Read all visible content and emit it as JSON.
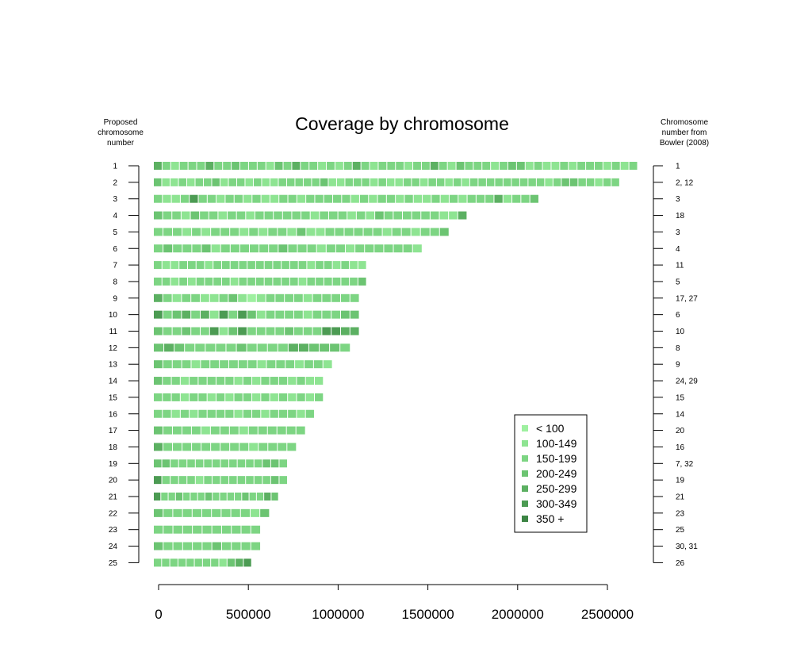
{
  "chart_data": {
    "type": "heatmap",
    "title": "Coverage by chromosome",
    "left_axis_label": [
      "Proposed",
      "chromosome",
      "number"
    ],
    "right_axis_label": [
      "Chromosome",
      "number from",
      "Bowler (2008)"
    ],
    "x_ticks": [
      0,
      500000,
      1000000,
      1500000,
      2000000,
      2500000
    ],
    "x_tick_labels": [
      "0",
      "500000",
      "1000000",
      "1500000",
      "2000000",
      "2500000"
    ],
    "xlim": [
      0,
      2700000
    ],
    "bin_size": 50000,
    "legend": {
      "position": "bottom-right",
      "entries": [
        {
          "label": "< 100",
          "color": "#9ef0a0"
        },
        {
          "label": "100-149",
          "color": "#8ee492"
        },
        {
          "label": "150-199",
          "color": "#7dd583"
        },
        {
          "label": "200-249",
          "color": "#6cc472"
        },
        {
          "label": "250-299",
          "color": "#5cb062"
        },
        {
          "label": "300-349",
          "color": "#4c9b53"
        },
        {
          "label": "350 +",
          "color": "#3d8545"
        }
      ]
    },
    "chromosomes": [
      {
        "label": "1",
        "bowler": "1",
        "length": 2670000,
        "levels": "42122242232221324221212421222122421322212331211212221212"
      },
      {
        "label": "2",
        "bowler": "2, 12",
        "length": 2570000,
        "levels": "31121223122121122222311222121122122121222222222123322122"
      },
      {
        "label": "3",
        "bowler": "3",
        "length": 2120000,
        "levels": "2112522122121122122222121221211212122241223"
      },
      {
        "label": "4",
        "bowler": "18",
        "length": 1720000,
        "levels": "3221322122122222212221213222222114"
      },
      {
        "label": "5",
        "bowler": "3",
        "length": 1620000,
        "levels": "2221212221212213112222221221223"
      },
      {
        "label": "6",
        "bowler": "4",
        "length": 1470000,
        "levels": "2322231222222322212212222221"
      },
      {
        "label": "7",
        "bowler": "11",
        "length": 1160000,
        "levels": "2112221222222222221221211"
      },
      {
        "label": "8",
        "bowler": "5",
        "length": 1160000,
        "levels": "2212122221222222212222223"
      },
      {
        "label": "9",
        "bowler": "17, 27",
        "length": 1120000,
        "levels": "4212211231012222122222"
      },
      {
        "label": "10",
        "bowler": "6",
        "length": 1120000,
        "levels": "5234241525312222122233"
      },
      {
        "label": "11",
        "bowler": "10",
        "length": 1120000,
        "levels": "3223225135222232225544"
      },
      {
        "label": "12",
        "bowler": "8",
        "length": 1070000,
        "levels": "3432222232222443332"
      },
      {
        "label": "13",
        "bowler": "9",
        "length": 970000,
        "levels": "3222122222212221221"
      },
      {
        "label": "14",
        "bowler": "24, 29",
        "length": 920000,
        "levels": "3221222221212221211"
      },
      {
        "label": "15",
        "bowler": "15",
        "length": 920000,
        "levels": "2221221212212121212"
      },
      {
        "label": "16",
        "bowler": "14",
        "length": 870000,
        "levels": "221212222122122212"
      },
      {
        "label": "17",
        "bowler": "20",
        "length": 820000,
        "levels": "3222212221222222"
      },
      {
        "label": "18",
        "bowler": "16",
        "length": 770000,
        "levels": "422222222212222"
      },
      {
        "label": "19",
        "bowler": "7, 32",
        "length": 720000,
        "levels": "3322222222222332"
      },
      {
        "label": "20",
        "bowler": "19",
        "length": 720000,
        "levels": "5222212222222232"
      },
      {
        "label": "21",
        "bowler": "21",
        "length": 670000,
        "levels": "52232223222232243"
      },
      {
        "label": "22",
        "bowler": "23",
        "length": 620000,
        "levels": "322222222213"
      },
      {
        "label": "23",
        "bowler": "25",
        "length": 570000,
        "levels": "22222222222"
      },
      {
        "label": "24",
        "bowler": "30, 31",
        "length": 570000,
        "levels": "32222232222"
      },
      {
        "label": "25",
        "bowler": "26",
        "length": 520000,
        "levels": "222222221345"
      }
    ]
  }
}
